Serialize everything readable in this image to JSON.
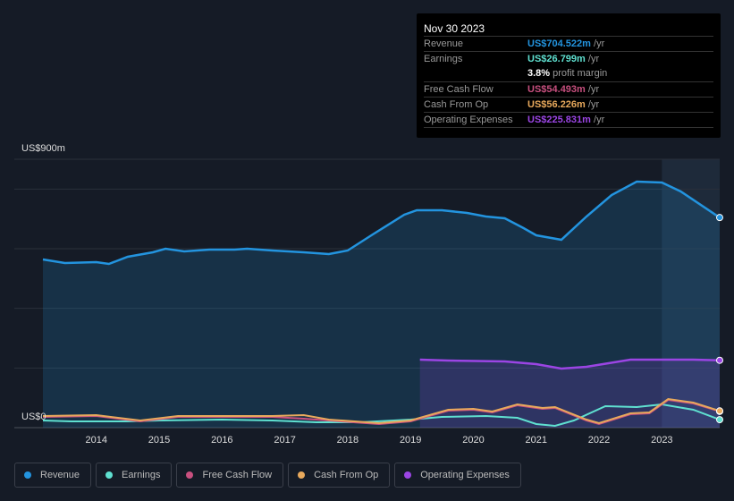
{
  "tooltip": {
    "date": "Nov 30 2023",
    "rows": [
      {
        "label": "Revenue",
        "value": "US$704.522m",
        "unit": " /yr",
        "color": "#2394df"
      },
      {
        "label": "Earnings",
        "value": "US$26.799m",
        "unit": " /yr",
        "color": "#5fe0d0"
      },
      {
        "label": "",
        "value": "3.8%",
        "unit": " profit margin",
        "color": "#ffffff"
      },
      {
        "label": "Free Cash Flow",
        "value": "US$54.493m",
        "unit": " /yr",
        "color": "#c8507f"
      },
      {
        "label": "Cash From Op",
        "value": "US$56.226m",
        "unit": " /yr",
        "color": "#e8a95c"
      },
      {
        "label": "Operating Expenses",
        "value": "US$225.831m",
        "unit": " /yr",
        "color": "#9b45e4"
      }
    ]
  },
  "chart_data": {
    "type": "area",
    "y_top_label": "US$900m",
    "y_bottom_label": "US$0",
    "ylim": [
      0,
      900
    ],
    "xlim": [
      2013.15,
      2023.92
    ],
    "x_ticks": [
      "2014",
      "2015",
      "2016",
      "2017",
      "2018",
      "2019",
      "2020",
      "2021",
      "2022",
      "2023"
    ],
    "series": [
      {
        "name": "Revenue",
        "color": "#2394df",
        "fill": true,
        "points": [
          [
            2013.15,
            564
          ],
          [
            2013.5,
            552
          ],
          [
            2014,
            555
          ],
          [
            2014.2,
            549
          ],
          [
            2014.5,
            573
          ],
          [
            2014.9,
            588
          ],
          [
            2015.1,
            600
          ],
          [
            2015.4,
            591
          ],
          [
            2015.8,
            597
          ],
          [
            2016.2,
            597
          ],
          [
            2016.4,
            600
          ],
          [
            2016.8,
            594
          ],
          [
            2017.3,
            588
          ],
          [
            2017.7,
            582
          ],
          [
            2018,
            594
          ],
          [
            2018.4,
            648
          ],
          [
            2018.9,
            714
          ],
          [
            2019.1,
            729
          ],
          [
            2019.5,
            729
          ],
          [
            2019.9,
            720
          ],
          [
            2020.2,
            708
          ],
          [
            2020.5,
            702
          ],
          [
            2020.8,
            669
          ],
          [
            2021,
            645
          ],
          [
            2021.4,
            630
          ],
          [
            2021.8,
            708
          ],
          [
            2022.2,
            780
          ],
          [
            2022.6,
            825
          ],
          [
            2023,
            822
          ],
          [
            2023.3,
            792
          ],
          [
            2023.92,
            704.5
          ]
        ]
      },
      {
        "name": "Operating Expenses",
        "color": "#9b45e4",
        "fill": true,
        "points": [
          [
            2019.15,
            228
          ],
          [
            2019.6,
            225
          ],
          [
            2020.5,
            222
          ],
          [
            2021,
            213
          ],
          [
            2021.4,
            198
          ],
          [
            2021.8,
            204
          ],
          [
            2022.5,
            228
          ],
          [
            2023,
            228
          ],
          [
            2023.5,
            228
          ],
          [
            2023.92,
            225.8
          ]
        ]
      },
      {
        "name": "Earnings",
        "color": "#5fe0d0",
        "fill": false,
        "points": [
          [
            2013.15,
            24
          ],
          [
            2013.6,
            21
          ],
          [
            2014.5,
            21
          ],
          [
            2015,
            24
          ],
          [
            2016,
            27
          ],
          [
            2016.8,
            24
          ],
          [
            2017.5,
            18
          ],
          [
            2018.2,
            18
          ],
          [
            2019,
            27
          ],
          [
            2019.5,
            36
          ],
          [
            2020.2,
            39
          ],
          [
            2020.7,
            33
          ],
          [
            2021,
            12
          ],
          [
            2021.3,
            6
          ],
          [
            2021.6,
            24
          ],
          [
            2022.1,
            72
          ],
          [
            2022.6,
            69
          ],
          [
            2023,
            78
          ],
          [
            2023.5,
            60
          ],
          [
            2023.92,
            26.8
          ]
        ]
      },
      {
        "name": "Free Cash Flow",
        "color": "#c8507f",
        "fill": false,
        "points": [
          [
            2013.15,
            36
          ],
          [
            2014,
            39
          ],
          [
            2014.7,
            21
          ],
          [
            2015.3,
            36
          ],
          [
            2016,
            36
          ],
          [
            2016.8,
            36
          ],
          [
            2017.3,
            30
          ],
          [
            2017.7,
            24
          ],
          [
            2018.5,
            12
          ],
          [
            2019,
            21
          ],
          [
            2019.6,
            57
          ],
          [
            2020,
            60
          ],
          [
            2020.3,
            51
          ],
          [
            2020.7,
            75
          ],
          [
            2021.1,
            63
          ],
          [
            2021.3,
            66
          ],
          [
            2021.8,
            24
          ],
          [
            2022,
            12
          ],
          [
            2022.5,
            45
          ],
          [
            2022.8,
            48
          ],
          [
            2023.1,
            93
          ],
          [
            2023.5,
            81
          ],
          [
            2023.92,
            54.5
          ]
        ]
      },
      {
        "name": "Cash From Op",
        "color": "#e8a95c",
        "fill": false,
        "points": [
          [
            2013.15,
            39
          ],
          [
            2014,
            42
          ],
          [
            2014.7,
            24
          ],
          [
            2015.3,
            39
          ],
          [
            2016,
            39
          ],
          [
            2016.8,
            39
          ],
          [
            2017.3,
            42
          ],
          [
            2017.7,
            27
          ],
          [
            2018.5,
            15
          ],
          [
            2019,
            24
          ],
          [
            2019.6,
            60
          ],
          [
            2020,
            63
          ],
          [
            2020.3,
            54
          ],
          [
            2020.7,
            78
          ],
          [
            2021.1,
            66
          ],
          [
            2021.3,
            69
          ],
          [
            2021.8,
            27
          ],
          [
            2022,
            15
          ],
          [
            2022.5,
            48
          ],
          [
            2022.8,
            51
          ],
          [
            2023.1,
            96
          ],
          [
            2023.5,
            84
          ],
          [
            2023.92,
            56.2
          ]
        ]
      }
    ]
  },
  "legend": [
    {
      "label": "Revenue",
      "color": "#2394df"
    },
    {
      "label": "Earnings",
      "color": "#5fe0d0"
    },
    {
      "label": "Free Cash Flow",
      "color": "#c8507f"
    },
    {
      "label": "Cash From Op",
      "color": "#e8a95c"
    },
    {
      "label": "Operating Expenses",
      "color": "#9b45e4"
    }
  ]
}
